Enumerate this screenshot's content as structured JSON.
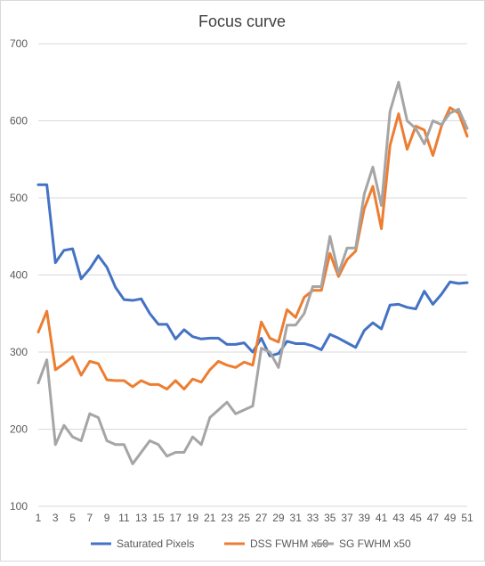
{
  "chart_data": {
    "type": "line",
    "title": "Focus curve",
    "xlabel": "",
    "ylabel": "",
    "ylim": [
      100,
      700
    ],
    "yticks": [
      100,
      200,
      300,
      400,
      500,
      600,
      700
    ],
    "x": [
      1,
      2,
      3,
      4,
      5,
      6,
      7,
      8,
      9,
      10,
      11,
      12,
      13,
      14,
      15,
      16,
      17,
      18,
      19,
      20,
      21,
      22,
      23,
      24,
      25,
      26,
      27,
      28,
      29,
      30,
      31,
      32,
      33,
      34,
      35,
      36,
      37,
      38,
      39,
      40,
      41,
      42,
      43,
      44,
      45,
      46,
      47,
      48,
      49,
      50,
      51
    ],
    "xtick_labels": [
      1,
      3,
      5,
      7,
      9,
      11,
      13,
      15,
      17,
      19,
      21,
      23,
      25,
      27,
      29,
      31,
      33,
      35,
      37,
      39,
      41,
      43,
      45,
      47,
      49,
      51
    ],
    "grid": "horizontal",
    "legend_position": "bottom",
    "series": [
      {
        "name": "Saturated Pixels",
        "color": "#4472c4",
        "values": [
          517,
          517,
          416,
          432,
          434,
          395,
          408,
          425,
          410,
          384,
          368,
          367,
          369,
          350,
          336,
          336,
          317,
          329,
          320,
          317,
          318,
          318,
          310,
          310,
          312,
          300,
          318,
          295,
          298,
          314,
          311,
          311,
          308,
          303,
          323,
          318,
          312,
          306,
          328,
          338,
          330,
          361,
          362,
          358,
          356,
          379,
          362,
          375,
          391,
          389,
          390
        ]
      },
      {
        "name": "DSS FWHM x50",
        "color": "#ed7d31",
        "values": [
          326,
          353,
          277,
          285,
          294,
          270,
          288,
          285,
          264,
          263,
          263,
          255,
          263,
          258,
          258,
          252,
          263,
          252,
          265,
          261,
          277,
          288,
          283,
          280,
          287,
          283,
          339,
          318,
          313,
          355,
          345,
          371,
          380,
          380,
          428,
          398,
          420,
          431,
          486,
          515,
          460,
          568,
          609,
          563,
          593,
          588,
          555,
          593,
          617,
          610,
          580
        ]
      },
      {
        "name": "SG FWHM x50",
        "color": "#a5a5a5",
        "values": [
          260,
          290,
          180,
          205,
          190,
          185,
          220,
          215,
          185,
          180,
          180,
          155,
          170,
          185,
          180,
          165,
          170,
          170,
          190,
          180,
          215,
          225,
          235,
          220,
          225,
          230,
          305,
          300,
          280,
          335,
          335,
          350,
          385,
          385,
          450,
          402,
          435,
          435,
          505,
          540,
          490,
          612,
          650,
          600,
          590,
          570,
          600,
          595,
          610,
          615,
          590
        ]
      }
    ]
  }
}
